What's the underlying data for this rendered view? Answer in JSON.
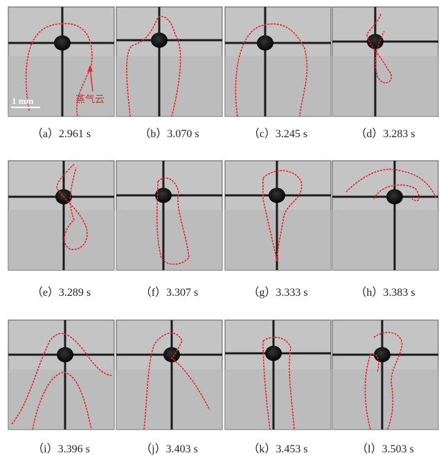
{
  "panels": [
    {
      "caption": "（a）2.961 s"
    },
    {
      "caption": "（b）3.070 s"
    },
    {
      "caption": "（c）3.245 s"
    },
    {
      "caption": "（d）3.283 s"
    },
    {
      "caption": "（e）3.289 s"
    },
    {
      "caption": "（f）3.307 s"
    },
    {
      "caption": "（g）3.333 s"
    },
    {
      "caption": "（h）3.383 s"
    },
    {
      "caption": "（i）3.396 s"
    },
    {
      "caption": "（j）3.403 s"
    },
    {
      "caption": "（k）3.453 s"
    },
    {
      "caption": "（l）3.503 s"
    }
  ],
  "annotation": "蒸气云",
  "scale_bar": "1 mm"
}
